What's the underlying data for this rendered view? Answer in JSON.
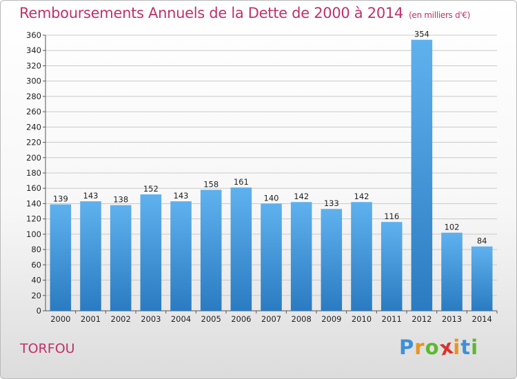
{
  "header": {
    "title": "Remboursements Annuels de la Dette de 2000 à 2014",
    "unit": "(en milliers d'€)"
  },
  "footer": {
    "place": "TORFOU",
    "logo_letters": [
      "P",
      "r",
      "o",
      "x",
      "i",
      "t",
      "i"
    ],
    "logo_colors": [
      "#3f8fd8",
      "#e8941e",
      "#5cb82f",
      "#d8322c",
      "#e8941e",
      "#3f8fd8",
      "#5cb82f"
    ]
  },
  "colors": {
    "bar_top": "#5fb1ee",
    "bar_bottom": "#2a7bc1",
    "grid": "#c9c9c9",
    "title": "#c0306a"
  },
  "chart_data": {
    "type": "bar",
    "categories": [
      "2000",
      "2001",
      "2002",
      "2003",
      "2004",
      "2005",
      "2006",
      "2007",
      "2008",
      "2009",
      "2010",
      "2011",
      "2012",
      "2013",
      "2014"
    ],
    "values": [
      139,
      143,
      138,
      152,
      143,
      158,
      161,
      140,
      142,
      133,
      142,
      116,
      354,
      102,
      84
    ],
    "ylim": [
      0,
      360
    ],
    "yticks": [
      0,
      20,
      40,
      60,
      80,
      100,
      120,
      140,
      160,
      180,
      200,
      220,
      240,
      260,
      280,
      300,
      320,
      340,
      360
    ],
    "grid": true,
    "data_labels": true
  }
}
